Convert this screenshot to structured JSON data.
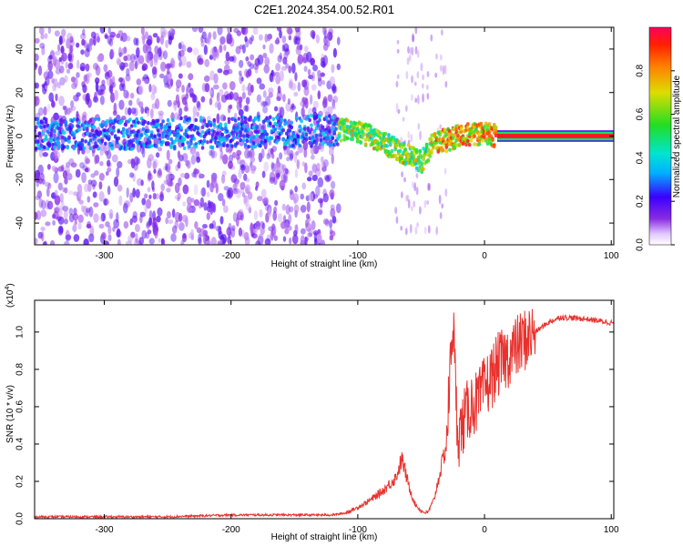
{
  "title": "C2E1.2024.354.00.52.R01",
  "chart_data": [
    {
      "type": "heatmap",
      "xlabel": "Height of straight line (km)",
      "ylabel": "Frequency (Hz)",
      "xlim": [
        -355,
        102
      ],
      "ylim": [
        -50,
        50
      ],
      "x_ticks": [
        -300,
        -200,
        -100,
        0,
        100
      ],
      "x_tick_labels": [
        "-300",
        "-200",
        "-100",
        "0",
        "100"
      ],
      "y_ticks": [
        -40,
        -20,
        0,
        20,
        40
      ],
      "y_tick_labels": [
        "-40",
        "-20",
        "0",
        "20",
        "40"
      ],
      "colorbar": {
        "label": "Normalized spectral amplitude",
        "range": [
          0,
          1
        ],
        "ticks": [
          0,
          0.2,
          0.4,
          0.6,
          0.8
        ],
        "tick_labels": [
          "0.0",
          "0.2",
          "0.4",
          "0.6",
          "0.8"
        ],
        "colormap": "rainbow (violet → blue → cyan → green → yellow → red)"
      },
      "ridge": {
        "description": "Spectral ridge frequency vs height",
        "x": [
          -350,
          -300,
          -250,
          -200,
          -150,
          -115,
          -100,
          -90,
          -80,
          -70,
          -60,
          -50,
          -45,
          -40,
          -35,
          -30,
          -20,
          -10,
          0,
          10,
          50,
          100
        ],
        "y": [
          1,
          1,
          1,
          2,
          2,
          3,
          2,
          0,
          -3,
          -6,
          -9,
          -12,
          -7,
          -3,
          -2,
          -2,
          0,
          1,
          1,
          0,
          0,
          0
        ]
      },
      "steady_band_start_x": 10
    },
    {
      "type": "line",
      "xlabel": "Height of straight line (km)",
      "ylabel": "SNR (10 * v/v)",
      "y_multiplier_label": "(x10",
      "y_multiplier_exp": "4",
      "y_multiplier_close": ")",
      "xlim": [
        -355,
        102
      ],
      "ylim": [
        0,
        1.17
      ],
      "x_ticks": [
        -300,
        -200,
        -100,
        0,
        100
      ],
      "x_tick_labels": [
        "-300",
        "-200",
        "-100",
        "0",
        "100"
      ],
      "y_ticks": [
        0,
        0.2,
        0.4,
        0.6,
        0.8,
        1.0
      ],
      "y_tick_labels": [
        "0.0",
        "0.2",
        "0.4",
        "0.6",
        "0.8",
        "1.0"
      ],
      "series": [
        {
          "color": "#e8322e",
          "x": [
            -355,
            -300,
            -250,
            -200,
            -150,
            -120,
            -110,
            -100,
            -90,
            -80,
            -70,
            -65,
            -60,
            -55,
            -50,
            -45,
            -40,
            -35,
            -30,
            -27,
            -25,
            -22,
            -20,
            -15,
            -10,
            -5,
            0,
            5,
            10,
            20,
            30,
            40,
            50,
            60,
            80,
            100
          ],
          "y": [
            0.01,
            0.01,
            0.01,
            0.02,
            0.02,
            0.02,
            0.03,
            0.06,
            0.1,
            0.15,
            0.22,
            0.32,
            0.18,
            0.08,
            0.04,
            0.03,
            0.1,
            0.25,
            0.4,
            0.8,
            1.1,
            0.55,
            0.45,
            0.55,
            0.62,
            0.62,
            0.7,
            0.75,
            0.82,
            0.88,
            0.95,
            1.0,
            1.05,
            1.08,
            1.07,
            1.05
          ]
        }
      ]
    }
  ]
}
